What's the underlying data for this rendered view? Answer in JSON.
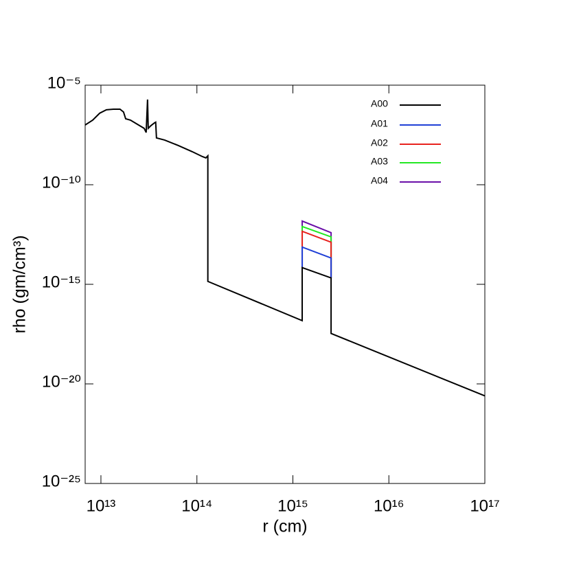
{
  "chart_data": {
    "type": "line",
    "xlabel": "r (cm)",
    "ylabel": "rho (gm/cm³)",
    "xlog": true,
    "ylog": true,
    "legend": "upper right",
    "xlim": [
      6850000000000.0,
      1e+17
    ],
    "xticks": [
      {
        "value": 10000000000000.0,
        "label": "10¹³"
      },
      {
        "value": 100000000000000.0,
        "label": "10¹⁴"
      },
      {
        "value": 1000000000000000.0,
        "label": "10¹⁵"
      },
      {
        "value": 1e+16,
        "label": "10¹⁶"
      },
      {
        "value": 1e+17,
        "label": "10¹⁷"
      }
    ],
    "ylim": [
      1e-25,
      1e-05
    ],
    "yticks": [
      {
        "value": 1e-05,
        "label": "10⁻⁵"
      },
      {
        "value": 1e-10,
        "label": "10⁻¹⁰"
      },
      {
        "value": 1e-15,
        "label": "10⁻¹⁵"
      },
      {
        "value": 1e-20,
        "label": "10⁻²⁰"
      },
      {
        "value": 1e-25,
        "label": "10⁻²⁵"
      }
    ],
    "series": [
      {
        "name": "A00",
        "color": "#000000",
        "x": [
          6850000000000.0,
          8200000000000.0,
          9700000000000.0,
          11400000000000.0,
          13500000000000.0,
          15800000000000.0,
          17200000000000.0,
          18100000000000.0,
          20300000000000.0,
          23900000000000.0,
          28200000000000.0,
          29600000000000.0,
          30600000000000.0,
          31100000000000.0,
          33200000000000.0,
          36100000000000.0,
          37200000000000.0,
          37900000000000.0,
          46100000000000.0,
          64100000000000.0,
          89100000000000.0,
          114000000000000.0,
          124000000000000.0,
          130000000000000.0,
          130000000000000.0,
          1250000000000000.0,
          1250000000000000.0,
          2500000000000000.0,
          2500000000000000.0,
          1e+17
        ],
        "values": [
          1e-07,
          1.75e-07,
          3.9e-07,
          5.8e-07,
          6.2e-07,
          6.2e-07,
          4.5e-07,
          2.05e-07,
          1.75e-07,
          1.09e-07,
          6.8e-08,
          4.2e-08,
          1.9e-06,
          6.8e-08,
          9.3e-08,
          1.27e-07,
          1.38e-07,
          2.23e-08,
          1.75e-08,
          9.3e-09,
          4.6e-09,
          2.6e-09,
          2.23e-09,
          2.83e-09,
          1.4e-15,
          1.5e-17,
          6.9e-15,
          2.1e-15,
          3.4e-18,
          2.5e-21
        ]
      },
      {
        "name": "A01",
        "color": "#1f3fd6",
        "x": [
          1250000000000000.0,
          1250000000000000.0,
          2500000000000000.0,
          2500000000000000.0
        ],
        "values": [
          6.9e-15,
          7.4e-14,
          2.1e-14,
          2.1e-15
        ]
      },
      {
        "name": "A02",
        "color": "#e8211d",
        "x": [
          1250000000000000.0,
          1250000000000000.0,
          2500000000000000.0,
          2500000000000000.0
        ],
        "values": [
          6.9e-15,
          4.6e-13,
          1.3e-13,
          2.1e-15
        ]
      },
      {
        "name": "A03",
        "color": "#22e822",
        "x": [
          1250000000000000.0,
          1250000000000000.0,
          2500000000000000.0,
          2500000000000000.0
        ],
        "values": [
          6.9e-15,
          8e-13,
          2.4e-13,
          2.1e-15
        ]
      },
      {
        "name": "A04",
        "color": "#6a0fa8",
        "x": [
          1250000000000000.0,
          1250000000000000.0,
          2500000000000000.0,
          2500000000000000.0
        ],
        "values": [
          6.9e-15,
          1.5e-12,
          3.9e-13,
          2.1e-15
        ]
      }
    ]
  }
}
